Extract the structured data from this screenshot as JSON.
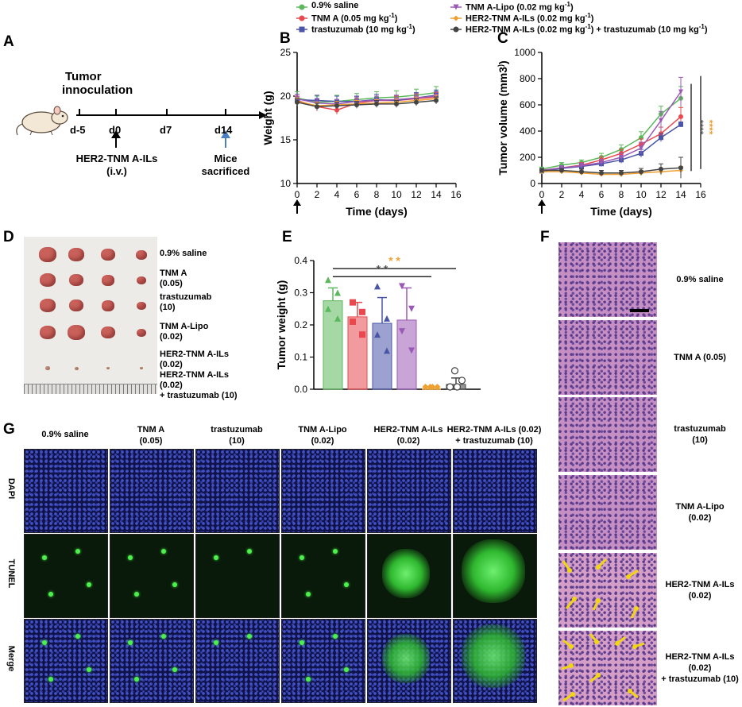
{
  "legend": {
    "items": [
      {
        "label": "0.9% saline",
        "color": "#5cb85c",
        "marker": "circle"
      },
      {
        "label": "TNM A (0.05 mg kg",
        "sup": "-1",
        "tail": ")",
        "color": "#e8484e",
        "marker": "circle"
      },
      {
        "label": "trastuzumab (10 mg kg",
        "sup": "-1",
        "tail": ")",
        "color": "#4a55a8",
        "marker": "square"
      },
      {
        "label": "TNM A-Lipo (0.02 mg kg",
        "sup": "-1",
        "tail": ")",
        "color": "#9b59b6",
        "marker": "triangle-down"
      },
      {
        "label": "HER2-TNM A-ILs (0.02 mg kg",
        "sup": "-1",
        "tail": ")",
        "color": "#f0a030",
        "marker": "diamond"
      },
      {
        "label": "HER2-TNM A-ILs (0.02 mg kg",
        "sup": "-1",
        "tail": ") + trastuzumab (10 mg kg",
        "sup2": "-1",
        "tail2": ")",
        "color": "#444444",
        "marker": "circle"
      }
    ]
  },
  "panelA": {
    "letter": "A",
    "title_line1": "Tumor",
    "title_line2": "innoculation",
    "ticks": [
      "d-5",
      "d0",
      "d7",
      "d14"
    ],
    "treat_line1": "HER2-TNM A-ILs",
    "treat_line2": "(i.v.)",
    "end_line1": "Mice",
    "end_line2": "sacrificed"
  },
  "panelB": {
    "letter": "B"
  },
  "panelC": {
    "letter": "C"
  },
  "panelD": {
    "letter": "D",
    "labels": [
      [
        "0.9% saline"
      ],
      [
        "TNM A",
        "(0.05)"
      ],
      [
        "trastuzumab",
        "(10)"
      ],
      [
        "TNM A-Lipo",
        "(0.02)"
      ],
      [
        "HER2-TNM A-ILs",
        "(0.02)"
      ],
      [
        "HER2-TNM A-ILs",
        "(0.02)",
        "+ trastuzumab (10)"
      ]
    ]
  },
  "panelE": {
    "letter": "E"
  },
  "panelF": {
    "letter": "F",
    "labels": [
      [
        "0.9% saline"
      ],
      [
        "TNM A (0.05)"
      ],
      [
        "trastuzumab",
        "(10)"
      ],
      [
        "TNM A-Lipo",
        "(0.02)"
      ],
      [
        "HER2-TNM A-ILs",
        "(0.02)"
      ],
      [
        "HER2-TNM A-ILs",
        "(0.02)",
        "+ trastuzumab (10)"
      ]
    ]
  },
  "panelG": {
    "letter": "G",
    "columns": [
      [
        "0.9% saline"
      ],
      [
        "TNM A",
        "(0.05)"
      ],
      [
        "trastuzumab",
        "(10)"
      ],
      [
        "TNM A-Lipo",
        "(0.02)"
      ],
      [
        "HER2-TNM A-ILs",
        "(0.02)"
      ],
      [
        "HER2-TNM A-ILs (0.02)",
        "+ trastuzumab (10)"
      ]
    ],
    "rows": [
      "DAPI",
      "TUNEL",
      "Merge"
    ]
  },
  "chart_data": [
    {
      "panel": "B",
      "type": "line",
      "xlabel": "Time (days)",
      "ylabel": "Weight (g)",
      "x": [
        0,
        2,
        4,
        6,
        8,
        10,
        12,
        14
      ],
      "xlim": [
        0,
        16
      ],
      "xticks": [
        0,
        2,
        4,
        6,
        8,
        10,
        12,
        14,
        16
      ],
      "ylim": [
        10,
        25
      ],
      "yticks": [
        10,
        15,
        20,
        25
      ],
      "series": [
        {
          "name": "0.9% saline",
          "color": "#5cb85c",
          "values": [
            19.8,
            19.3,
            19.4,
            19.6,
            19.8,
            19.9,
            20.1,
            20.4
          ],
          "err": 0.7
        },
        {
          "name": "TNM A (0.05 mg kg-1)",
          "color": "#e8484e",
          "values": [
            19.5,
            18.8,
            18.4,
            19.2,
            19.5,
            19.5,
            19.7,
            19.9
          ],
          "err": 0.5
        },
        {
          "name": "trastuzumab (10 mg kg-1)",
          "color": "#4a55a8",
          "values": [
            19.6,
            19.5,
            19.4,
            19.4,
            19.6,
            19.5,
            19.8,
            20.1
          ],
          "err": 0.6
        },
        {
          "name": "TNM A-Lipo (0.02 mg kg-1)",
          "color": "#9b59b6",
          "values": [
            19.7,
            19.2,
            19.1,
            19.4,
            19.5,
            19.6,
            19.8,
            20.0
          ],
          "err": 0.5
        },
        {
          "name": "HER2-TNM A-ILs (0.02 mg kg-1)",
          "color": "#f0a030",
          "values": [
            19.4,
            18.9,
            19.0,
            19.1,
            19.2,
            19.3,
            19.5,
            19.7
          ],
          "err": 0.4
        },
        {
          "name": "HER2-TNM A-ILs (0.02 mg kg-1) + trastuzumab (10 mg kg-1)",
          "color": "#444444",
          "values": [
            19.3,
            18.8,
            18.9,
            19.0,
            19.1,
            19.1,
            19.3,
            19.5
          ],
          "err": 0.4
        }
      ]
    },
    {
      "panel": "C",
      "type": "line",
      "xlabel": "Time (days)",
      "ylabel": "Tumor volume (mm3)",
      "x": [
        0,
        2,
        4,
        6,
        8,
        10,
        12,
        14
      ],
      "xlim": [
        0,
        16
      ],
      "xticks": [
        0,
        2,
        4,
        6,
        8,
        10,
        12,
        14,
        16
      ],
      "ylim": [
        0,
        1000
      ],
      "yticks": [
        0,
        200,
        400,
        600,
        800,
        1000
      ],
      "series": [
        {
          "name": "0.9% saline",
          "color": "#5cb85c",
          "values": [
            110,
            140,
            160,
            200,
            260,
            350,
            530,
            650
          ],
          "err": [
            15,
            20,
            20,
            30,
            35,
            45,
            60,
            90
          ]
        },
        {
          "name": "TNM A (0.05 mg kg-1)",
          "color": "#e8484e",
          "values": [
            100,
            120,
            140,
            180,
            230,
            300,
            380,
            510
          ],
          "err": [
            15,
            15,
            20,
            25,
            30,
            40,
            50,
            70
          ]
        },
        {
          "name": "trastuzumab (10 mg kg-1)",
          "color": "#4a55a8",
          "values": [
            95,
            115,
            130,
            150,
            180,
            230,
            350,
            450
          ],
          "err": [
            10,
            15,
            15,
            20,
            25,
            30,
            30,
            20
          ]
        },
        {
          "name": "TNM A-Lipo (0.02 mg kg-1)",
          "color": "#9b59b6",
          "values": [
            100,
            120,
            135,
            160,
            200,
            270,
            480,
            700
          ],
          "err": [
            15,
            15,
            20,
            25,
            30,
            45,
            70,
            110
          ]
        },
        {
          "name": "HER2-TNM A-ILs (0.02 mg kg-1)",
          "color": "#f0a030",
          "values": [
            90,
            90,
            80,
            70,
            70,
            80,
            90,
            100
          ],
          "err": [
            15,
            15,
            15,
            15,
            20,
            20,
            25,
            30
          ]
        },
        {
          "name": "HER2-TNM A-ILs (0.02 mg kg-1) + trastuzumab (10 mg kg-1)",
          "color": "#444444",
          "values": [
            100,
            100,
            90,
            80,
            80,
            90,
            110,
            120
          ],
          "err": [
            15,
            15,
            20,
            20,
            20,
            25,
            40,
            80
          ]
        }
      ],
      "annotations": [
        {
          "text": "****",
          "color": "#555555"
        },
        {
          "text": "****",
          "color": "#f0a030"
        }
      ]
    },
    {
      "panel": "E",
      "type": "bar",
      "ylabel": "Tumor weight (g)",
      "ylim": [
        0,
        0.4
      ],
      "yticks": [
        0.0,
        0.1,
        0.2,
        0.3,
        0.4
      ],
      "categories": [
        "0.9% saline",
        "TNM A",
        "trastuzumab",
        "TNM A-Lipo",
        "HER2-TNM A-ILs",
        "HER2-TNM A-ILs + trastuzumab"
      ],
      "values": [
        0.275,
        0.225,
        0.205,
        0.215,
        0.0,
        0.015
      ],
      "err": [
        0.04,
        0.045,
        0.08,
        0.1,
        0.0,
        0.02
      ],
      "points": [
        [
          0.34,
          0.3,
          0.25,
          0.22
        ],
        [
          0.27,
          0.24,
          0.21,
          0.17
        ],
        [
          0.32,
          0.22,
          0.17,
          0.12
        ],
        [
          0.32,
          0.25,
          0.18,
          0.12
        ],
        [
          0,
          0,
          0,
          0
        ],
        [
          0.05,
          0.02,
          0.0,
          0.0
        ]
      ],
      "colors": [
        "#5cb85c",
        "#e8484e",
        "#4a55a8",
        "#9b59b6",
        "#f0a030",
        "#444444"
      ],
      "annotations": [
        {
          "text": "* *",
          "color": "#f0a030"
        },
        {
          "text": "* *",
          "color": "#555555"
        }
      ]
    }
  ]
}
